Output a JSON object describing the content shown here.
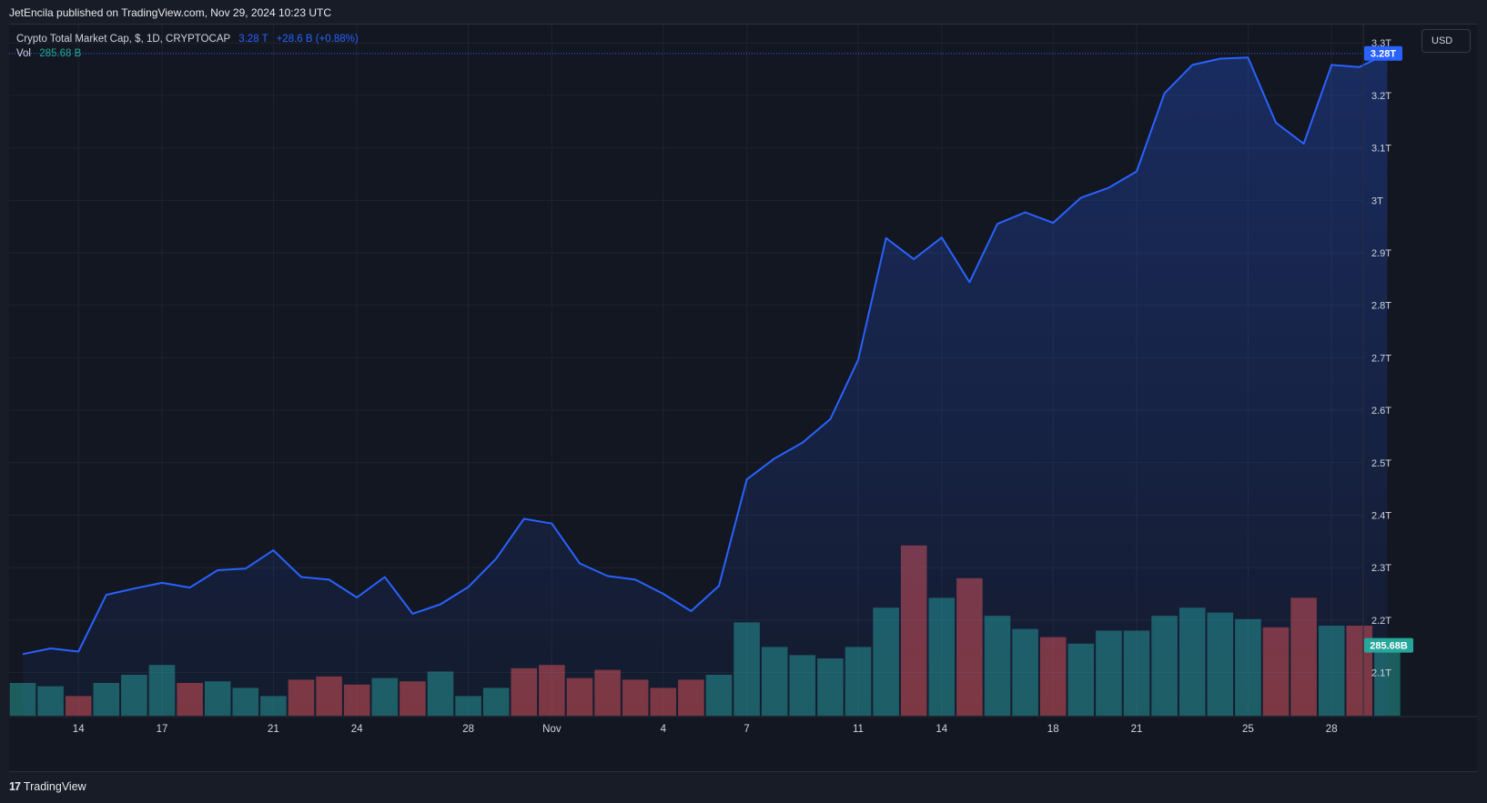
{
  "header": {
    "publisher_line": "JetEncila published on TradingView.com, Nov 29, 2024 10:23 UTC"
  },
  "legend": {
    "title": "Crypto Total Market Cap, $, 1D, CRYPTOCAP",
    "last_value": "3.28 T",
    "change": "+28.6 B (+0.88%)",
    "vol_label": "Vol",
    "vol_value": "285.68 B"
  },
  "toolbar": {
    "currency": "USD"
  },
  "footer": {
    "logo_mark": "17",
    "brand": "TradingView"
  },
  "colors": {
    "line": "#2962ff",
    "volume_up": "#26a69a",
    "volume_down": "#ef5350",
    "background": "#131722",
    "grid": "#1f2330"
  },
  "chart_data": {
    "type": "area",
    "title": "Crypto Total Market Cap, $, 1D, CRYPTOCAP",
    "x_tick_labels": [
      "14",
      "17",
      "21",
      "24",
      "28",
      "Nov",
      "4",
      "7",
      "11",
      "14",
      "18",
      "21",
      "25",
      "28"
    ],
    "x_tick_index": [
      2,
      5,
      9,
      12,
      16,
      19,
      23,
      26,
      30,
      33,
      37,
      40,
      44,
      47
    ],
    "y_tick_labels": [
      "3.3T",
      "3.2T",
      "3.1T",
      "3T",
      "2.9T",
      "2.8T",
      "2.7T",
      "2.6T",
      "2.5T",
      "2.4T",
      "2.3T",
      "2.2T",
      "2.1T"
    ],
    "y_tick_values": [
      3.3,
      3.2,
      3.1,
      3.0,
      2.9,
      2.8,
      2.7,
      2.6,
      2.5,
      2.4,
      2.3,
      2.2,
      2.1
    ],
    "ylim": [
      2.016,
      3.335
    ],
    "y_unit": "T",
    "last_price_label": "3.28T",
    "last_volume_label": "285.68B",
    "series": [
      {
        "name": "Crypto Total Market Cap",
        "values": [
          2.135,
          2.146,
          2.14,
          2.248,
          2.26,
          2.271,
          2.262,
          2.295,
          2.298,
          2.333,
          2.282,
          2.277,
          2.243,
          2.282,
          2.212,
          2.23,
          2.263,
          2.317,
          2.393,
          2.384,
          2.308,
          2.284,
          2.277,
          2.25,
          2.217,
          2.265,
          2.468,
          2.508,
          2.538,
          2.583,
          2.696,
          2.928,
          2.888,
          2.929,
          2.844,
          2.955,
          2.977,
          2.957,
          3.005,
          3.024,
          3.055,
          3.204,
          3.258,
          3.27,
          3.272,
          3.148,
          3.108,
          3.258,
          3.254,
          3.28
        ]
      },
      {
        "name": "Vol",
        "direction": [
          "up",
          "up",
          "down",
          "up",
          "up",
          "up",
          "down",
          "up",
          "up",
          "up",
          "down",
          "down",
          "down",
          "up",
          "down",
          "up",
          "up",
          "up",
          "down",
          "down",
          "down",
          "down",
          "down",
          "down",
          "down",
          "up",
          "up",
          "up",
          "up",
          "up",
          "up",
          "up",
          "down",
          "up",
          "down",
          "up",
          "up",
          "down",
          "up",
          "up",
          "up",
          "up",
          "up",
          "up",
          "up",
          "down",
          "down",
          "up",
          "down",
          "up"
        ],
        "relative_heights": [
          0.2,
          0.18,
          0.12,
          0.2,
          0.25,
          0.31,
          0.2,
          0.21,
          0.17,
          0.12,
          0.22,
          0.24,
          0.19,
          0.23,
          0.21,
          0.27,
          0.12,
          0.17,
          0.29,
          0.31,
          0.23,
          0.28,
          0.22,
          0.17,
          0.22,
          0.25,
          0.57,
          0.42,
          0.37,
          0.35,
          0.42,
          0.66,
          1.04,
          0.72,
          0.84,
          0.61,
          0.53,
          0.48,
          0.44,
          0.52,
          0.52,
          0.61,
          0.66,
          0.63,
          0.59,
          0.54,
          0.72,
          0.55,
          0.55,
          0.43
        ]
      }
    ],
    "grid": true,
    "legend_position": "top-left"
  }
}
